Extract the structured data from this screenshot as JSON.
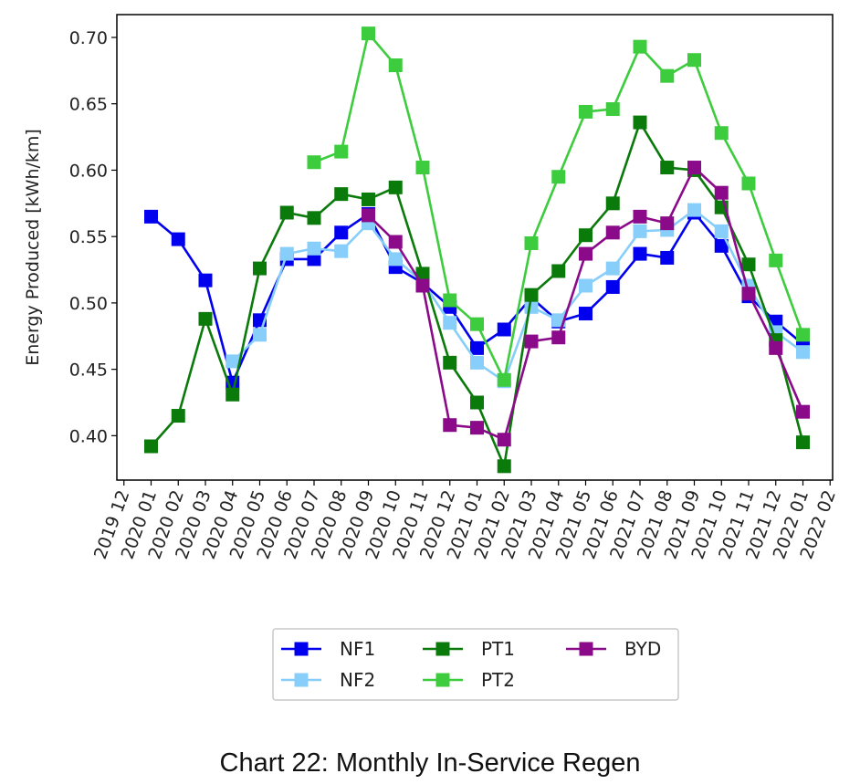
{
  "chart_data": {
    "type": "line",
    "ylabel": "Energy Produced [kWh/km]",
    "xlabel": "",
    "ylim": [
      0.37,
      0.72
    ],
    "yticks": [
      0.4,
      0.45,
      0.5,
      0.55,
      0.6,
      0.65,
      0.7
    ],
    "ytick_labels": [
      "0.40",
      "0.45",
      "0.50",
      "0.55",
      "0.60",
      "0.65",
      "0.70"
    ],
    "x": [
      "2020 01",
      "2020 02",
      "2020 03",
      "2020 04",
      "2020 05",
      "2020 06",
      "2020 07",
      "2020 08",
      "2020 09",
      "2020 10",
      "2020 11",
      "2020 12",
      "2021 01",
      "2021 02",
      "2021 03",
      "2021 04",
      "2021 05",
      "2021 06",
      "2021 07",
      "2021 08",
      "2021 09",
      "2021 10",
      "2021 11",
      "2021 12",
      "2022 01"
    ],
    "xtick_labels": [
      "2019 12",
      "2020 01",
      "2020 02",
      "2020 03",
      "2020 04",
      "2020 05",
      "2020 06",
      "2020 07",
      "2020 08",
      "2020 09",
      "2020 10",
      "2020 11",
      "2020 12",
      "2021 01",
      "2021 02",
      "2021 03",
      "2021 04",
      "2021 05",
      "2021 06",
      "2021 07",
      "2021 08",
      "2021 09",
      "2021 10",
      "2021 11",
      "2021 12",
      "2022 01",
      "2022 02"
    ],
    "grid": false,
    "legend_position": "bottom-center",
    "series": [
      {
        "name": "NF1",
        "color": "#0000ee",
        "values": [
          0.565,
          0.548,
          0.517,
          0.44,
          0.487,
          0.533,
          0.533,
          0.553,
          0.567,
          0.527,
          0.515,
          0.497,
          0.466,
          0.48,
          0.504,
          0.486,
          0.492,
          0.512,
          0.537,
          0.534,
          0.568,
          0.543,
          0.505,
          0.486,
          0.469
        ]
      },
      {
        "name": "NF2",
        "color": "#87cefa",
        "values": [
          null,
          null,
          null,
          0.456,
          0.476,
          0.537,
          0.541,
          0.539,
          0.56,
          0.533,
          0.516,
          0.485,
          0.455,
          0.441,
          0.497,
          0.487,
          0.513,
          0.526,
          0.554,
          0.555,
          0.57,
          0.554,
          0.513,
          0.478,
          0.463
        ]
      },
      {
        "name": "PT1",
        "color": "#0a7a0a",
        "values": [
          0.392,
          0.415,
          0.488,
          0.431,
          0.526,
          0.568,
          0.564,
          0.582,
          0.578,
          0.587,
          0.522,
          0.455,
          0.425,
          0.377,
          0.506,
          0.524,
          0.551,
          0.575,
          0.636,
          0.602,
          0.6,
          0.572,
          0.529,
          0.472,
          0.395
        ]
      },
      {
        "name": "PT2",
        "color": "#3dcc3d",
        "values": [
          null,
          null,
          null,
          null,
          null,
          null,
          0.606,
          0.614,
          0.703,
          0.679,
          0.602,
          0.502,
          0.484,
          0.442,
          0.545,
          0.595,
          0.644,
          0.646,
          0.693,
          0.671,
          0.683,
          0.628,
          0.59,
          0.532,
          0.476
        ]
      },
      {
        "name": "BYD",
        "color": "#8a0a8a",
        "values": [
          null,
          null,
          null,
          null,
          null,
          null,
          null,
          null,
          0.566,
          0.546,
          0.513,
          0.408,
          0.406,
          0.397,
          0.471,
          0.474,
          0.537,
          0.553,
          0.565,
          0.56,
          0.602,
          0.583,
          0.507,
          0.466,
          0.418
        ]
      }
    ]
  },
  "caption": "Chart 22: Monthly In-Service Regen"
}
